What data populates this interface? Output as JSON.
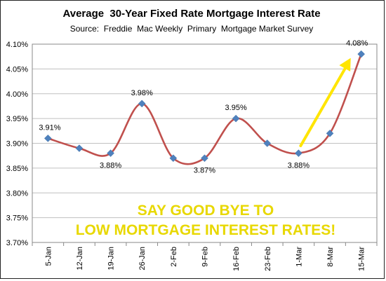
{
  "chart_data": {
    "type": "line",
    "title": "Average  30-Year Fixed Rate Mortgage Interest Rate",
    "subtitle": "Source:  Freddie  Mac Weekly  Primary  Mortgage Market Survey",
    "categories": [
      "5-Jan",
      "12-Jan",
      "19-Jan",
      "26-Jan",
      "2-Feb",
      "9-Feb",
      "16-Feb",
      "23-Feb",
      "1-Mar",
      "8-Mar",
      "15-Mar"
    ],
    "series": [
      {
        "values": [
          3.91,
          3.89,
          3.88,
          3.98,
          3.87,
          3.87,
          3.95,
          3.9,
          3.88,
          3.92,
          4.08
        ]
      }
    ],
    "data_labels": [
      {
        "index": 0,
        "text": "3.91%"
      },
      {
        "index": 2,
        "text": "3.88%"
      },
      {
        "index": 3,
        "text": "3.98%"
      },
      {
        "index": 5,
        "text": "3.87%"
      },
      {
        "index": 6,
        "text": "3.95%"
      },
      {
        "index": 8,
        "text": "3.88%"
      },
      {
        "index": 10,
        "text": "4.08%"
      }
    ],
    "yticks": [
      "3.70%",
      "3.75%",
      "3.80%",
      "3.85%",
      "3.90%",
      "3.95%",
      "4.00%",
      "4.05%",
      "4.10%"
    ],
    "ylim": [
      3.7,
      4.1
    ],
    "grid": true,
    "legend": "none",
    "annotation_lines": [
      "SAY GOOD BYE TO",
      "LOW MORTGAGE INTEREST RATES!"
    ],
    "colors": {
      "line": "#C0504D",
      "marker": "#4F81BD",
      "arrow": "#FFE500",
      "annotation": "#E8D800",
      "grid": "#C0C0C0"
    }
  }
}
